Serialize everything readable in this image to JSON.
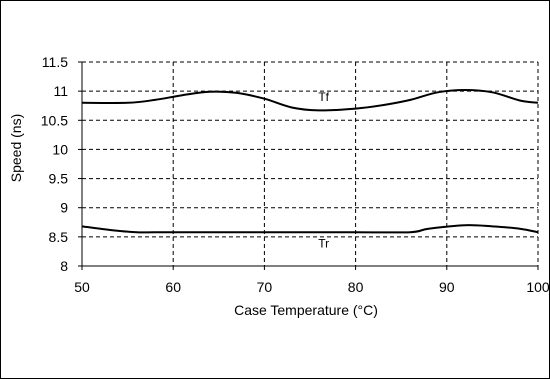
{
  "chart_data": {
    "type": "line",
    "title": "",
    "xlabel": "Case Temperature (°C)",
    "ylabel": "Speed (ns)",
    "xlim": [
      50,
      100
    ],
    "ylim": [
      8,
      11.5
    ],
    "x_ticks": [
      50,
      60,
      70,
      80,
      90,
      100
    ],
    "y_ticks": [
      8,
      8.5,
      9,
      9.5,
      10,
      10.5,
      11,
      11.5
    ],
    "x_tick_labels": [
      "50",
      "60",
      "70",
      "80",
      "90",
      "100"
    ],
    "y_tick_labels": [
      "8",
      "8.5",
      "9",
      "9.5",
      "10",
      "10.5",
      "11",
      "11.5"
    ],
    "grid": true,
    "series": [
      {
        "name": "Tf",
        "color": "#000000",
        "x": [
          50,
          55,
          58,
          61,
          64,
          67,
          70,
          73,
          76,
          80,
          83,
          86,
          89,
          92,
          95,
          98,
          100
        ],
        "y": [
          10.8,
          10.8,
          10.85,
          10.93,
          10.99,
          10.97,
          10.87,
          10.72,
          10.67,
          10.7,
          10.76,
          10.85,
          10.98,
          11.02,
          10.98,
          10.84,
          10.8
        ]
      },
      {
        "name": "Tr",
        "color": "#000000",
        "x": [
          50,
          53,
          56,
          60,
          70,
          80,
          86,
          88,
          92,
          95,
          98,
          100
        ],
        "y": [
          8.68,
          8.62,
          8.58,
          8.58,
          8.58,
          8.58,
          8.58,
          8.64,
          8.7,
          8.68,
          8.64,
          8.58
        ]
      }
    ],
    "series_labels": [
      {
        "text": "Tf",
        "x": 76.5,
        "y": 10.83
      },
      {
        "text": "Tr",
        "x": 76.5,
        "y": 8.32
      }
    ]
  }
}
